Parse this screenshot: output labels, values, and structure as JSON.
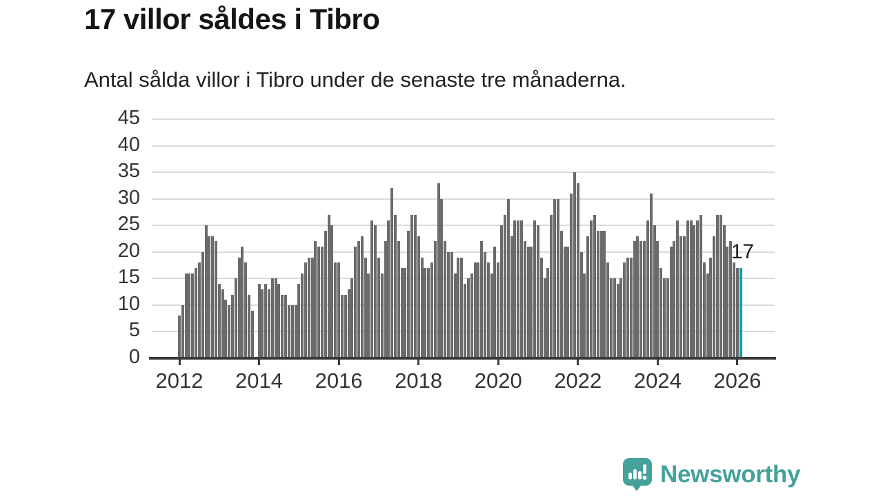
{
  "header": {
    "title": "17 villor såldes i Tibro",
    "subtitle": "Antal sålda villor i Tibro under de senaste tre månaderna."
  },
  "chart_data": {
    "type": "bar",
    "title": "17 villor såldes i Tibro",
    "subtitle": "Antal sålda villor i Tibro under de senaste tre månaderna.",
    "x_unit": "month",
    "x_start": "2012-01",
    "x_end": "2026-02",
    "x_tick_labels": [
      "2012",
      "2014",
      "2016",
      "2018",
      "2020",
      "2022",
      "2024",
      "2026"
    ],
    "y_ticks": [
      0,
      5,
      10,
      15,
      20,
      25,
      30,
      35,
      40,
      45
    ],
    "ylim": [
      0,
      45
    ],
    "grid": true,
    "bar_color": "#6b6b6b",
    "values": [
      8,
      10,
      16,
      16,
      16,
      17,
      18,
      20,
      25,
      23,
      23,
      22,
      14,
      13,
      11,
      10,
      12,
      15,
      19,
      21,
      18,
      12,
      9,
      0,
      14,
      13,
      14,
      13,
      15,
      15,
      14,
      12,
      12,
      10,
      10,
      10,
      14,
      16,
      18,
      19,
      19,
      22,
      21,
      21,
      24,
      27,
      25,
      18,
      18,
      12,
      12,
      13,
      15,
      21,
      22,
      23,
      19,
      16,
      26,
      25,
      19,
      16,
      22,
      26,
      32,
      27,
      22,
      17,
      17,
      24,
      27,
      27,
      23,
      19,
      17,
      17,
      18,
      22,
      33,
      30,
      22,
      20,
      20,
      16,
      19,
      19,
      14,
      15,
      16,
      18,
      18,
      22,
      20,
      18,
      16,
      21,
      18,
      25,
      27,
      30,
      23,
      26,
      26,
      26,
      22,
      21,
      21,
      26,
      25,
      19,
      15,
      17,
      27,
      30,
      30,
      24,
      21,
      21,
      31,
      35,
      33,
      20,
      16,
      23,
      26,
      27,
      24,
      24,
      24,
      18,
      15,
      15,
      14,
      15,
      18,
      19,
      19,
      22,
      23,
      22,
      22,
      26,
      31,
      25,
      22,
      17,
      15,
      15,
      21,
      22,
      26,
      23,
      23,
      26,
      26,
      25,
      26,
      27,
      18,
      16,
      19,
      23,
      27,
      27,
      25,
      21,
      22,
      18,
      17,
      17
    ],
    "highlight": {
      "index": 169,
      "value": 17,
      "label": "17",
      "color": "#00a2a4"
    }
  },
  "annotation": {
    "last_value_label": "17"
  },
  "footer": {
    "brand": "Newsworthy",
    "brand_color": "#44a19c",
    "logo_icon": "bar-chart-speech-bubble"
  },
  "colors": {
    "bar": "#6b6b6b",
    "highlight": "#00a2a4",
    "grid": "#dadada",
    "axis": "#3a3a3a",
    "text_dark": "#151515",
    "text_axis": "#333333"
  }
}
